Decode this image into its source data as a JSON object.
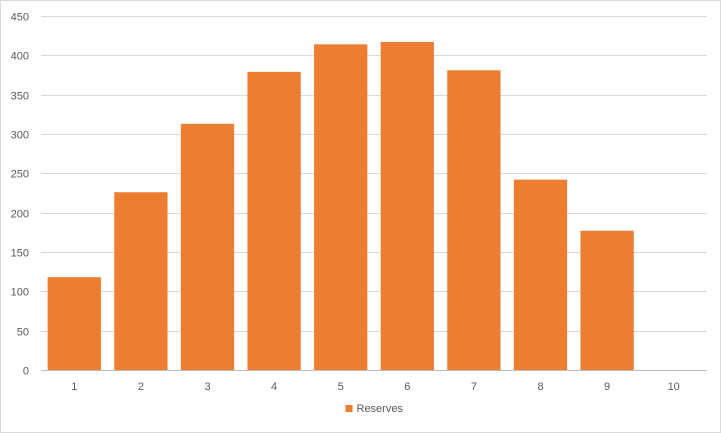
{
  "chart_data": {
    "type": "bar",
    "categories": [
      "1",
      "2",
      "3",
      "4",
      "5",
      "6",
      "7",
      "8",
      "9",
      "10"
    ],
    "series": [
      {
        "name": "Reserves",
        "values": [
          118,
          226,
          313,
          379,
          414,
          417,
          381,
          242,
          177,
          0
        ]
      }
    ],
    "ylim": [
      0,
      450
    ],
    "yticks": [
      0,
      50,
      100,
      150,
      200,
      250,
      300,
      350,
      400,
      450
    ],
    "grid": true,
    "legend": "bottom",
    "colors": {
      "bar": "#ed7d31",
      "grid": "#d9d9d9",
      "axis": "#bfbfbf",
      "text": "#595959"
    }
  }
}
